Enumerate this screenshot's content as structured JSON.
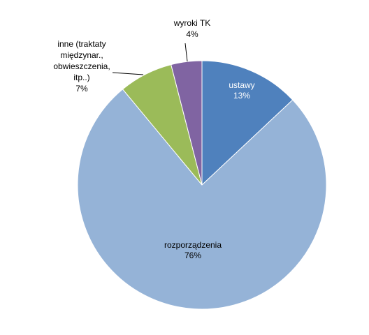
{
  "chart_data": {
    "type": "pie",
    "title": "",
    "start_angle_deg": 0,
    "direction": "clockwise",
    "slices": [
      {
        "label": "ustawy",
        "value": 13,
        "value_label": "13%",
        "color": "#4F81BD",
        "label_lines": [
          "ustawy"
        ],
        "label_position": "inside"
      },
      {
        "label": "rozporządzenia",
        "value": 76,
        "value_label": "76%",
        "color": "#95B3D7",
        "label_lines": [
          "rozporządzenia"
        ],
        "label_position": "inside"
      },
      {
        "label": "inne (traktaty międzynar., obwieszczenia, itp..)",
        "value": 7,
        "value_label": "7%",
        "color": "#9BBB59",
        "label_lines": [
          "inne (traktaty",
          "międzynar.,",
          "obwieszczenia,",
          "itp..)"
        ],
        "label_position": "outside-left"
      },
      {
        "label": "wyroki TK",
        "value": 4,
        "value_label": "4%",
        "color": "#8064A2",
        "label_lines": [
          "wyroki TK"
        ],
        "label_position": "outside-top"
      }
    ]
  }
}
